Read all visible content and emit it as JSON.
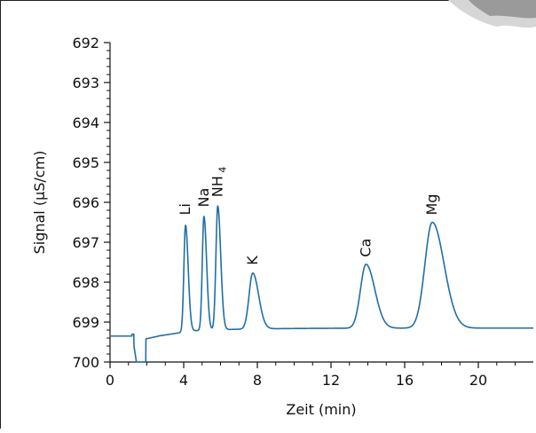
{
  "chart_data": {
    "type": "line",
    "title": "",
    "xlabel": "Zeit (min)",
    "ylabel": "Signal (µS/cm)",
    "xlim": [
      0,
      23
    ],
    "ylim": [
      700,
      692
    ],
    "y_axis_inverted": true,
    "x_ticks": [
      0,
      4,
      8,
      12,
      16,
      20
    ],
    "y_ticks": [
      692,
      693,
      694,
      695,
      696,
      697,
      698,
      699,
      700
    ],
    "grid": false,
    "line_color": "#1f6fa5",
    "baseline_signal": 699.15,
    "series": [
      {
        "peaks": [
          {
            "label": "Li",
            "subscript": "",
            "time": 4.1,
            "signal": 696.5
          },
          {
            "label": "Na",
            "subscript": "",
            "time": 5.1,
            "signal": 696.3
          },
          {
            "label": "NH",
            "subscript": "4",
            "time": 5.85,
            "signal": 696.05
          },
          {
            "label": "K",
            "subscript": "",
            "time": 7.75,
            "signal": 697.75
          },
          {
            "label": "Ca",
            "subscript": "",
            "time": 13.9,
            "signal": 697.55
          },
          {
            "label": "Mg",
            "subscript": "",
            "time": 17.5,
            "signal": 696.5
          }
        ]
      }
    ]
  }
}
